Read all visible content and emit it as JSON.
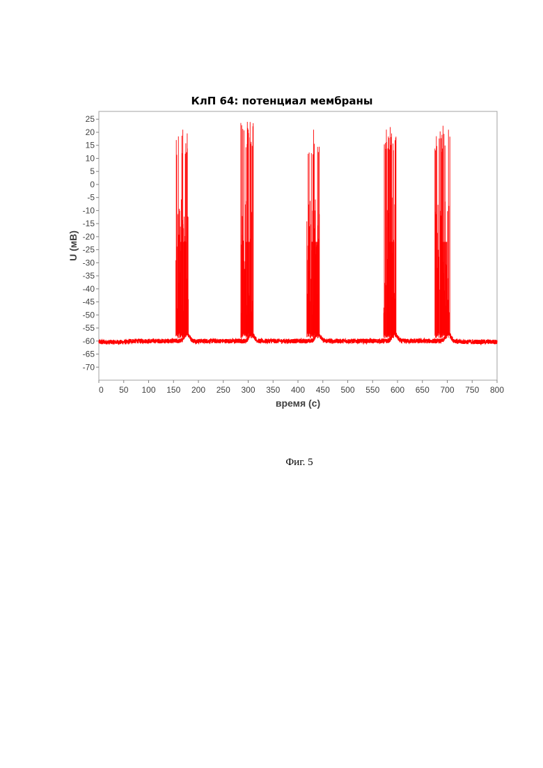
{
  "figure_caption": "Фиг. 5",
  "chart_data": {
    "type": "line",
    "title": "КлП 64: потенциал мембраны",
    "xlabel": "время (с)",
    "ylabel": "U (мВ)",
    "xlim": [
      0,
      800
    ],
    "ylim": [
      -75,
      28
    ],
    "x_ticks": [
      0,
      50,
      100,
      150,
      200,
      250,
      300,
      350,
      400,
      450,
      500,
      550,
      600,
      650,
      700,
      750,
      800
    ],
    "y_ticks": [
      25,
      20,
      15,
      10,
      5,
      0,
      -5,
      -10,
      -15,
      -20,
      -25,
      -30,
      -35,
      -40,
      -45,
      -50,
      -55,
      -60,
      -65,
      -70
    ],
    "grid": false,
    "line_color": "#ff0000",
    "baseline": -60,
    "bursts": [
      {
        "start": 155,
        "end": 180,
        "spike_peaks_max": 21
      },
      {
        "start": 285,
        "end": 310,
        "spike_peaks_max": 24
      },
      {
        "start": 418,
        "end": 443,
        "spike_peaks_max": 21
      },
      {
        "start": 572,
        "end": 597,
        "spike_peaks_max": 22
      },
      {
        "start": 675,
        "end": 705,
        "spike_peaks_max": 22.5
      }
    ]
  }
}
